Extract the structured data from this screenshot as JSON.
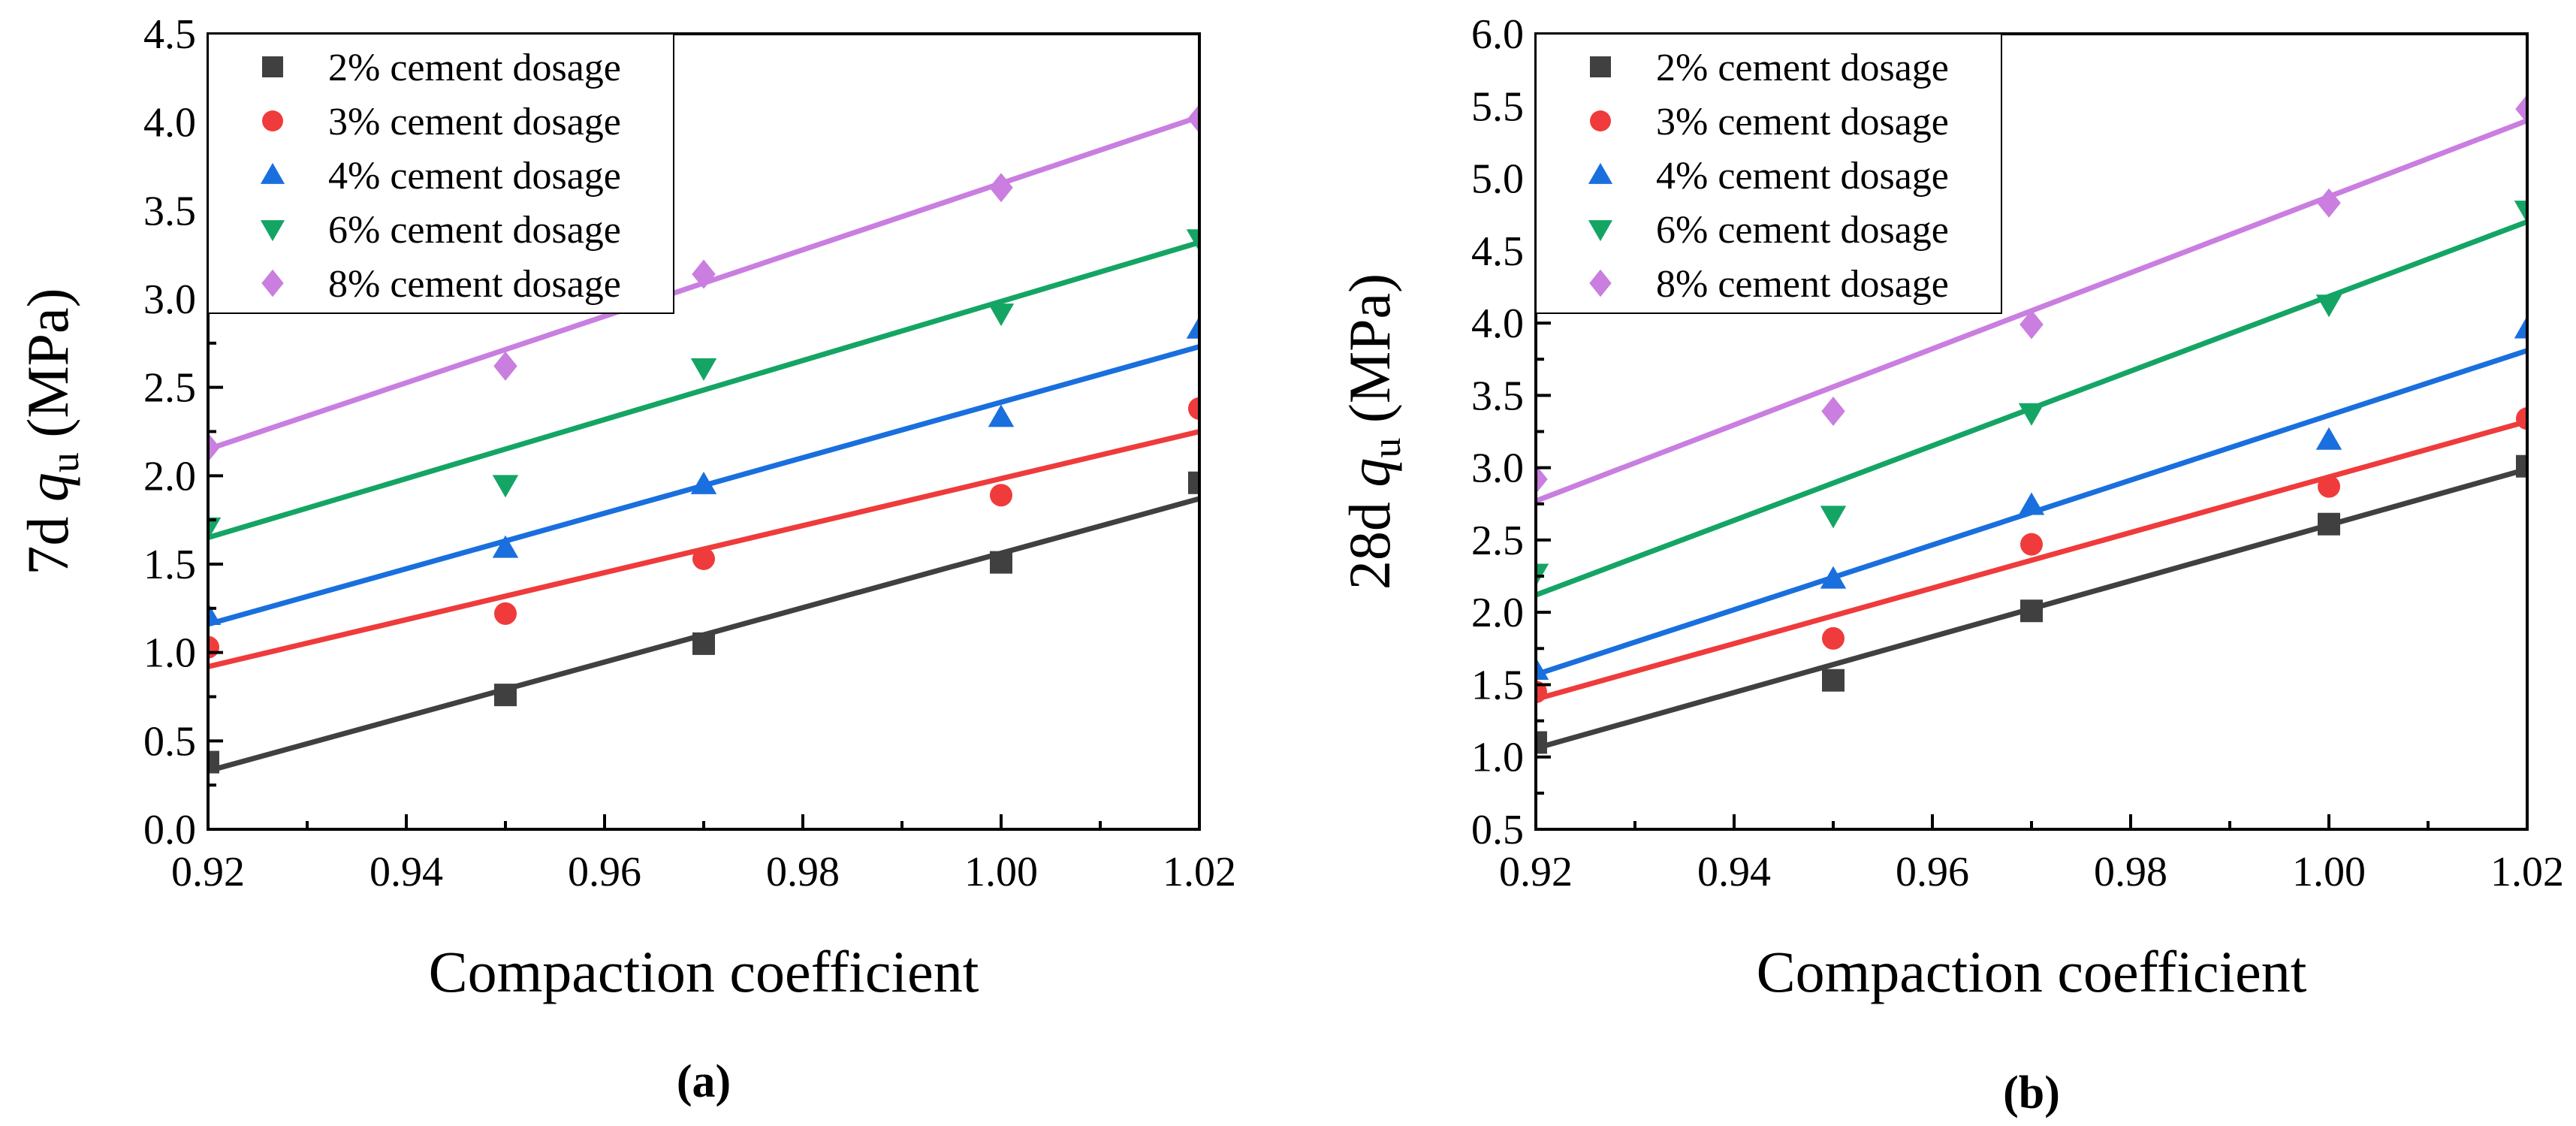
{
  "figure": {
    "panel_labels": [
      "(a)",
      "(b)"
    ]
  },
  "chart_data": [
    {
      "type": "scatter",
      "panel": "(a)",
      "title": "",
      "xlabel": "Compaction coefficient",
      "ylabel_prefix": "7d ",
      "ylabel_var": "q",
      "ylabel_sub": "u",
      "ylabel_unit": " (MPa)",
      "xlim": [
        0.92,
        1.02
      ],
      "ylim": [
        0.0,
        4.5
      ],
      "xticks": [
        "0.92",
        "0.94",
        "0.96",
        "0.98",
        "1.00",
        "1.02"
      ],
      "yticks": [
        "0.0",
        "0.5",
        "1.0",
        "1.5",
        "2.0",
        "2.5",
        "3.0",
        "3.5",
        "4.0",
        "4.5"
      ],
      "legend_position": "top-left",
      "x": [
        0.92,
        0.95,
        0.97,
        1.0,
        1.02
      ],
      "series": [
        {
          "name": "2% cement dosage",
          "marker": "square",
          "color": "#404040",
          "values": [
            0.38,
            0.76,
            1.05,
            1.51,
            1.96
          ],
          "fit": [
            0.33,
            1.87
          ]
        },
        {
          "name": "3% cement dosage",
          "marker": "circle",
          "color": "#ef3b3b",
          "values": [
            1.03,
            1.22,
            1.53,
            1.89,
            2.38
          ],
          "fit": [
            0.92,
            2.25
          ]
        },
        {
          "name": "4% cement dosage",
          "marker": "triangle-up",
          "color": "#1a6fde",
          "values": [
            1.21,
            1.59,
            1.95,
            2.33,
            2.83
          ],
          "fit": [
            1.16,
            2.73
          ]
        },
        {
          "name": "6% cement dosage",
          "marker": "triangle-down",
          "color": "#14a565",
          "values": [
            1.71,
            1.95,
            2.61,
            2.92,
            3.34
          ],
          "fit": [
            1.65,
            3.32
          ]
        },
        {
          "name": "8% cement dosage",
          "marker": "diamond",
          "color": "#c97ee0",
          "values": [
            2.16,
            2.62,
            3.14,
            3.63,
            4.02
          ],
          "fit": [
            2.15,
            4.03
          ]
        }
      ]
    },
    {
      "type": "scatter",
      "panel": "(b)",
      "title": "",
      "xlabel": "Compaction coefficient",
      "ylabel_prefix": "28d ",
      "ylabel_var": "q",
      "ylabel_sub": "u",
      "ylabel_unit": " (MPa)",
      "xlim": [
        0.92,
        1.02
      ],
      "ylim": [
        0.5,
        6.0
      ],
      "xticks": [
        "0.92",
        "0.94",
        "0.96",
        "0.98",
        "1.00",
        "1.02"
      ],
      "yticks": [
        "0.5",
        "1.0",
        "1.5",
        "2.0",
        "2.5",
        "3.0",
        "3.5",
        "4.0",
        "4.5",
        "5.0",
        "5.5",
        "6.0"
      ],
      "legend_position": "top-left",
      "x": [
        0.92,
        0.95,
        0.97,
        1.0,
        1.02
      ],
      "series": [
        {
          "name": "2% cement dosage",
          "marker": "square",
          "color": "#404040",
          "values": [
            1.1,
            1.53,
            2.01,
            2.61,
            3.01
          ],
          "fit": [
            1.06,
            2.99
          ]
        },
        {
          "name": "3% cement dosage",
          "marker": "circle",
          "color": "#ef3b3b",
          "values": [
            1.45,
            1.82,
            2.47,
            2.87,
            3.34
          ],
          "fit": [
            1.4,
            3.32
          ]
        },
        {
          "name": "4% cement dosage",
          "marker": "triangle-up",
          "color": "#1a6fde",
          "values": [
            1.6,
            2.23,
            2.74,
            3.19,
            3.96
          ],
          "fit": [
            1.57,
            3.81
          ]
        },
        {
          "name": "6% cement dosage",
          "marker": "triangle-down",
          "color": "#14a565",
          "values": [
            2.27,
            2.67,
            3.38,
            4.13,
            4.78
          ],
          "fit": [
            2.12,
            4.7
          ]
        },
        {
          "name": "8% cement dosage",
          "marker": "diamond",
          "color": "#c97ee0",
          "values": [
            2.92,
            3.39,
            3.99,
            4.83,
            5.48
          ],
          "fit": [
            2.77,
            5.4
          ]
        }
      ]
    }
  ]
}
